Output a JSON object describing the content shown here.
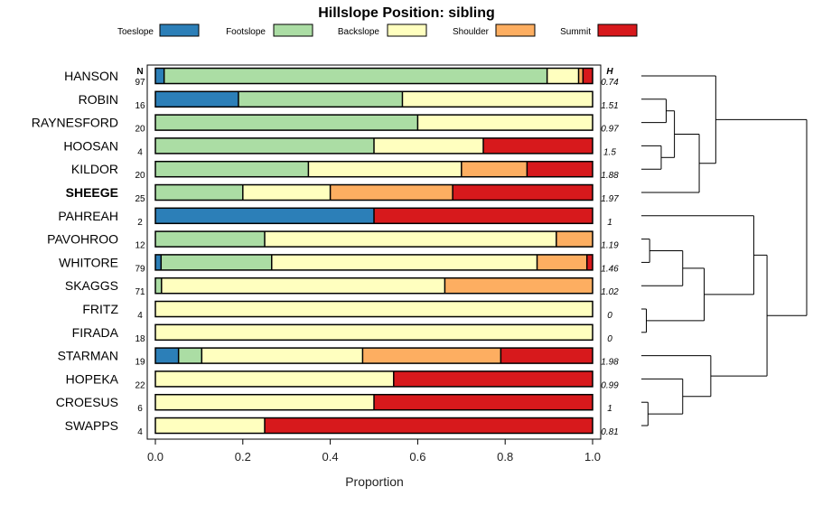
{
  "chart_data": {
    "type": "bar",
    "orientation": "horizontal",
    "stacked": true,
    "title": "Hillslope Position: sibling",
    "xlabel": "Proportion",
    "xlim": [
      0,
      1
    ],
    "x_ticks": [
      "0.0",
      "0.2",
      "0.4",
      "0.6",
      "0.8",
      "1.0"
    ],
    "n_header": "N",
    "h_header": "H",
    "legend_position": "top",
    "highlight": "SHEEGE",
    "series": [
      {
        "name": "Toeslope",
        "color": "#2c7fb8",
        "values": [
          0.02,
          0.19,
          0,
          0,
          0,
          0,
          0.5,
          0,
          0.013,
          0,
          0,
          0,
          0.053,
          0,
          0,
          0
        ]
      },
      {
        "name": "Footslope",
        "color": "#abdda4",
        "values": [
          0.876,
          0.375,
          0.6,
          0.5,
          0.35,
          0.2,
          0,
          0.25,
          0.253,
          0.014,
          0,
          0,
          0.053,
          0,
          0,
          0
        ]
      },
      {
        "name": "Backslope",
        "color": "#ffffbf",
        "values": [
          0.072,
          0.435,
          0.4,
          0.25,
          0.35,
          0.2,
          0,
          0.667,
          0.607,
          0.648,
          1,
          1,
          0.368,
          0.545,
          0.5,
          0.25
        ]
      },
      {
        "name": "Shoulder",
        "color": "#fdae61",
        "values": [
          0.01,
          0,
          0,
          0,
          0.15,
          0.28,
          0,
          0.083,
          0.114,
          0.338,
          0,
          0,
          0.316,
          0,
          0,
          0
        ]
      },
      {
        "name": "Summit",
        "color": "#d7191c",
        "values": [
          0.022,
          0,
          0,
          0.25,
          0.15,
          0.32,
          0.5,
          0,
          0.013,
          0,
          0,
          0,
          0.21,
          0.455,
          0.5,
          0.75
        ]
      }
    ],
    "rows": [
      {
        "name": "HANSON",
        "n": "97",
        "h": "0.74"
      },
      {
        "name": "ROBIN",
        "n": "16",
        "h": "1.51"
      },
      {
        "name": "RAYNESFORD",
        "n": "20",
        "h": "0.97"
      },
      {
        "name": "HOOSAN",
        "n": "4",
        "h": "1.5"
      },
      {
        "name": "KILDOR",
        "n": "20",
        "h": "1.88"
      },
      {
        "name": "SHEEGE",
        "n": "25",
        "h": "1.97"
      },
      {
        "name": "PAHREAH",
        "n": "2",
        "h": "1"
      },
      {
        "name": "PAVOHROO",
        "n": "12",
        "h": "1.19"
      },
      {
        "name": "WHITORE",
        "n": "79",
        "h": "1.46"
      },
      {
        "name": "SKAGGS",
        "n": "71",
        "h": "1.02"
      },
      {
        "name": "FRITZ",
        "n": "4",
        "h": "0"
      },
      {
        "name": "FIRADA",
        "n": "18",
        "h": "0"
      },
      {
        "name": "STARMAN",
        "n": "19",
        "h": "1.98"
      },
      {
        "name": "HOPEKA",
        "n": "22",
        "h": "0.99"
      },
      {
        "name": "CROESUS",
        "n": "6",
        "h": "1"
      },
      {
        "name": "SWAPPS",
        "n": "4",
        "h": "0.81"
      }
    ],
    "dendrogram": [
      {
        "a": "HOOSAN",
        "b": "KILDOR",
        "height": 0.12
      },
      {
        "a": "ROBIN",
        "b": "RAYNESFORD",
        "height": 0.15
      },
      {
        "a": "ROBIN+RAYNESFORD",
        "b": "HOOSAN+KILDOR",
        "height": 0.2
      },
      {
        "a": "ROBIN..KILDOR",
        "b": "SHEEGE",
        "height": 0.35
      },
      {
        "a": "HANSON",
        "b": "ROBIN..SHEEGE",
        "height": 0.45
      },
      {
        "a": "FRITZ",
        "b": "FIRADA",
        "height": 0.03
      },
      {
        "a": "CROESUS",
        "b": "SWAPPS",
        "height": 0.04
      },
      {
        "a": "PAVOHROO",
        "b": "WHITORE",
        "height": 0.05
      },
      {
        "a": "HOPEKA",
        "b": "CROESUS+SWAPPS",
        "height": 0.25
      },
      {
        "a": "PAVOHROO+WHITORE",
        "b": "SKAGGS",
        "height": 0.25
      },
      {
        "a": "PAVOHROO..SKAGGS",
        "b": "FRITZ+FIRADA",
        "height": 0.38
      },
      {
        "a": "PAVOHROO..FIRADA",
        "b": "PAHREAH",
        "height": 0.68
      },
      {
        "a": "STARMAN",
        "b": "HOPEKA..SWAPPS",
        "height": 0.42
      },
      {
        "a": "PAVOHROO..PAHREAH",
        "b": "STARMAN..SWAPPS",
        "height": 0.76
      },
      {
        "a": "HANSON..SHEEGE",
        "b": "PAVOHROO..SWAPPS",
        "height": 1.0
      }
    ]
  }
}
